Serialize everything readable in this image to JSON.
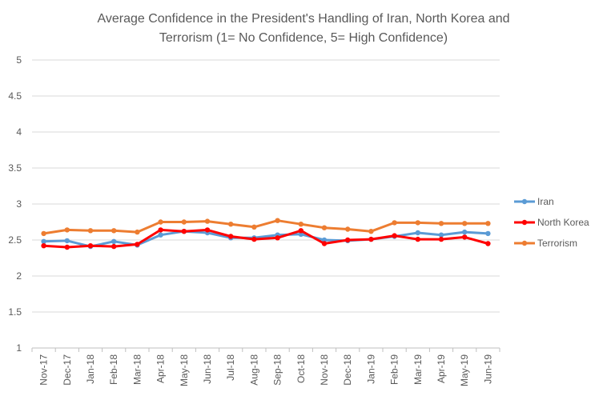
{
  "chart_data": {
    "type": "line",
    "title_lines": [
      "Average Confidence in the President's Handling of Iran, North Korea and",
      "Terrorism (1= No Confidence, 5= High Confidence)"
    ],
    "categories": [
      "Nov-17",
      "Dec-17",
      "Jan-18",
      "Feb-18",
      "Mar-18",
      "Apr-18",
      "May-18",
      "Jun-18",
      "Jul-18",
      "Aug-18",
      "Sep-18",
      "Oct-18",
      "Nov-18",
      "Dec-18",
      "Jan-19",
      "Feb-19",
      "Mar-19",
      "Apr-19",
      "May-19",
      "Jun-19"
    ],
    "ylim": [
      1,
      5
    ],
    "yticks": [
      "1",
      "1.5",
      "2",
      "2.5",
      "3",
      "3.5",
      "4",
      "4.5",
      "5"
    ],
    "grid": true,
    "legend_position": "right",
    "series": [
      {
        "name": "Iran",
        "color": "#5B9BD5",
        "values": [
          2.48,
          2.49,
          2.41,
          2.48,
          2.43,
          2.57,
          2.62,
          2.6,
          2.53,
          2.53,
          2.57,
          2.58,
          2.5,
          2.49,
          2.51,
          2.55,
          2.6,
          2.57,
          2.61,
          2.59
        ]
      },
      {
        "name": "North Korea",
        "color": "#FF0000",
        "values": [
          2.42,
          2.4,
          2.42,
          2.41,
          2.44,
          2.64,
          2.62,
          2.64,
          2.55,
          2.51,
          2.53,
          2.63,
          2.45,
          2.5,
          2.51,
          2.56,
          2.51,
          2.51,
          2.54,
          2.45
        ]
      },
      {
        "name": "Terrorism",
        "color": "#ED7D31",
        "values": [
          2.59,
          2.64,
          2.63,
          2.63,
          2.61,
          2.75,
          2.75,
          2.76,
          2.72,
          2.68,
          2.77,
          2.72,
          2.67,
          2.65,
          2.62,
          2.74,
          2.74,
          2.73,
          2.73,
          2.73
        ]
      }
    ]
  }
}
